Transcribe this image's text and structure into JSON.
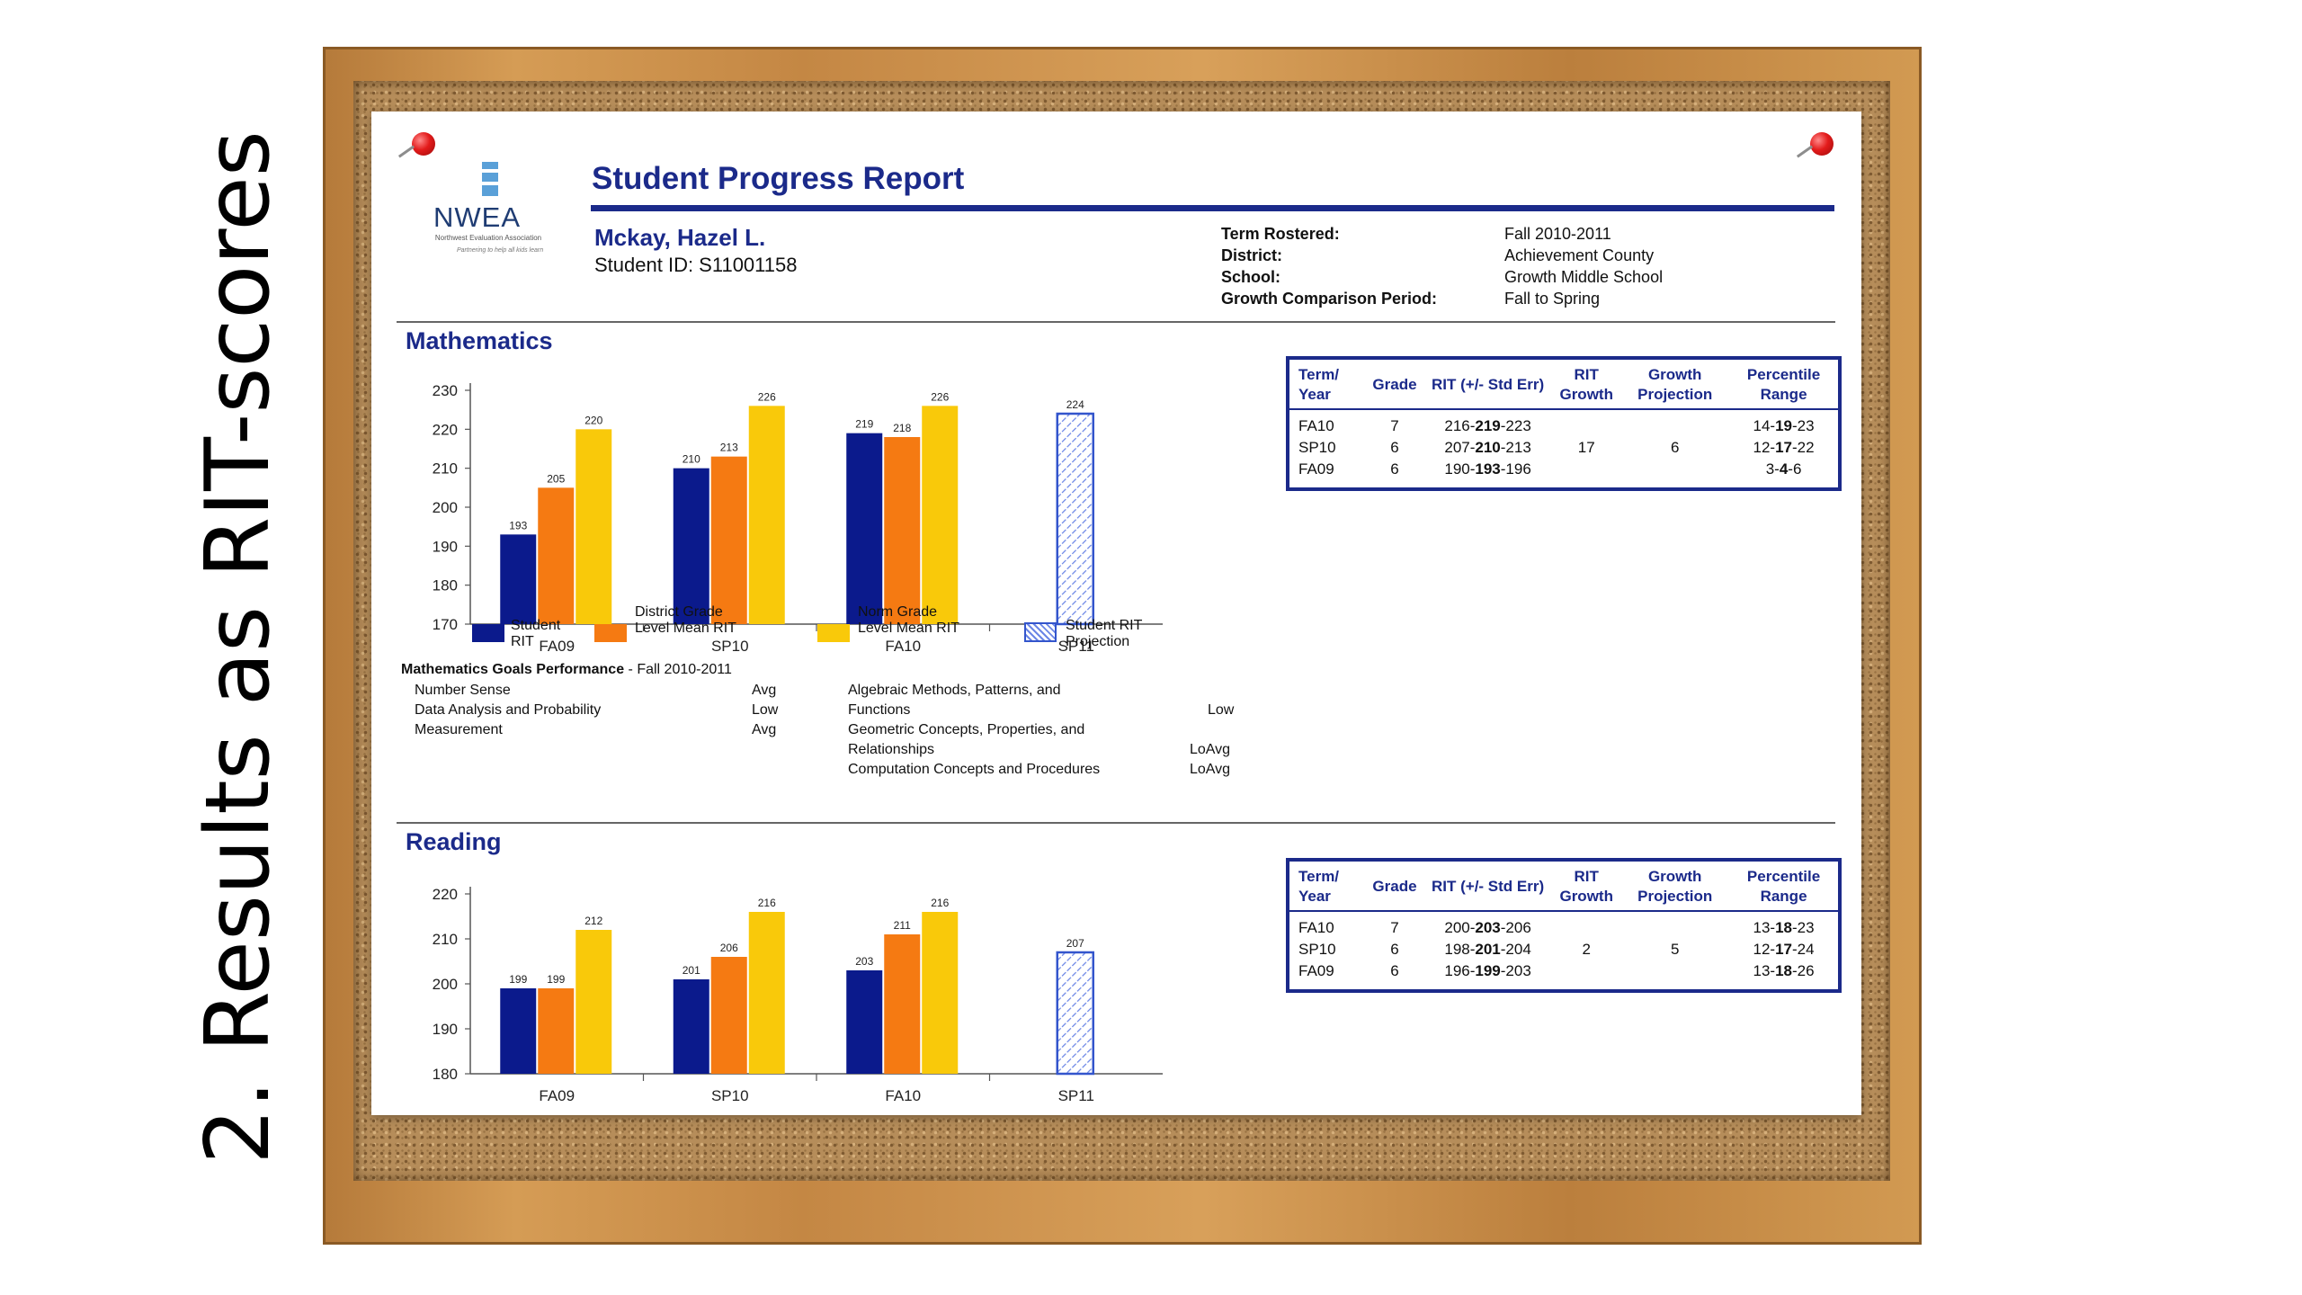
{
  "slide_title": "2. Results as RIT-scores",
  "report": {
    "title": "Student Progress Report",
    "logo": {
      "name": "NWEA",
      "subtitle": "Northwest Evaluation Association",
      "tagline": "Partnering to help all kids learn"
    },
    "student_name": "Mckay, Hazel L.",
    "student_id": "Student ID: S11001158",
    "meta": [
      {
        "label": "Term Rostered:",
        "value": "Fall 2010-2011"
      },
      {
        "label": "District:",
        "value": "Achievement County"
      },
      {
        "label": "School:",
        "value": "Growth Middle School"
      },
      {
        "label": "Growth Comparison Period:",
        "value": "Fall to Spring"
      }
    ]
  },
  "legend": {
    "student": "Student RIT",
    "district": "District Grade Level Mean RIT",
    "norm": "Norm Grade Level Mean RIT",
    "projection": "Student RIT Projection"
  },
  "colors": {
    "student": "#0b1a8c",
    "district": "#f57a12",
    "norm": "#f9c90a",
    "projection": "#3355cc"
  },
  "goals": {
    "heading": "Mathematics Goals Performance",
    "heading_suffix": " - Fall 2010-2011",
    "left": [
      {
        "name": "Number Sense",
        "level": "Avg"
      },
      {
        "name": "Data Analysis and Probability",
        "level": "Low"
      },
      {
        "name": "Measurement",
        "level": "Avg"
      }
    ],
    "right_lines": [
      "Algebraic Methods, Patterns, and",
      "Functions",
      "Geometric Concepts, Properties, and",
      "Relationships",
      "Computation Concepts and Procedures"
    ],
    "right_levels": [
      "",
      "Low",
      "",
      "LoAvg",
      "LoAvg"
    ]
  },
  "table_headers": [
    "Term/ Year",
    "Grade",
    "RIT (+/- Std Err)",
    "RIT Growth",
    "Growth Projection",
    "Percentile Range"
  ],
  "math_table": [
    {
      "term": "FA10",
      "grade": "7",
      "rit_lo": "216-",
      "rit": "219",
      "rit_hi": "-223",
      "growth": "",
      "projection": "",
      "pct_lo": "14-",
      "pct": "19",
      "pct_hi": "-23"
    },
    {
      "term": "SP10",
      "grade": "6",
      "rit_lo": "207-",
      "rit": "210",
      "rit_hi": "-213",
      "growth": "17",
      "projection": "6",
      "pct_lo": "12-",
      "pct": "17",
      "pct_hi": "-22"
    },
    {
      "term": "FA09",
      "grade": "6",
      "rit_lo": "190-",
      "rit": "193",
      "rit_hi": "-196",
      "growth": "",
      "projection": "",
      "pct_lo": "3-",
      "pct": "4",
      "pct_hi": "-6"
    }
  ],
  "reading_table": [
    {
      "term": "FA10",
      "grade": "7",
      "rit_lo": "200-",
      "rit": "203",
      "rit_hi": "-206",
      "growth": "",
      "projection": "",
      "pct_lo": "13-",
      "pct": "18",
      "pct_hi": "-23"
    },
    {
      "term": "SP10",
      "grade": "6",
      "rit_lo": "198-",
      "rit": "201",
      "rit_hi": "-204",
      "growth": "2",
      "projection": "5",
      "pct_lo": "12-",
      "pct": "17",
      "pct_hi": "-24"
    },
    {
      "term": "FA09",
      "grade": "6",
      "rit_lo": "196-",
      "rit": "199",
      "rit_hi": "-203",
      "growth": "",
      "projection": "",
      "pct_lo": "13-",
      "pct": "18",
      "pct_hi": "-26"
    }
  ],
  "chart_data": [
    {
      "type": "bar",
      "title": "Mathematics",
      "categories": [
        "FA09",
        "SP10",
        "FA10",
        "SP11"
      ],
      "ylim": [
        170,
        230
      ],
      "yticks": [
        170,
        180,
        190,
        200,
        210,
        220,
        230
      ],
      "series": [
        {
          "name": "Student RIT",
          "key": "student",
          "values": [
            193,
            210,
            219,
            null
          ]
        },
        {
          "name": "District Grade Level Mean RIT",
          "key": "district",
          "values": [
            205,
            213,
            218,
            null
          ]
        },
        {
          "name": "Norm Grade Level Mean RIT",
          "key": "norm",
          "values": [
            220,
            226,
            226,
            null
          ]
        },
        {
          "name": "Student RIT Projection",
          "key": "projection",
          "values": [
            null,
            null,
            null,
            224
          ]
        }
      ]
    },
    {
      "type": "bar",
      "title": "Reading",
      "categories": [
        "FA09",
        "SP10",
        "FA10",
        "SP11"
      ],
      "ylim": [
        180,
        220
      ],
      "yticks": [
        180,
        190,
        200,
        210,
        220
      ],
      "series": [
        {
          "name": "Student RIT",
          "key": "student",
          "values": [
            199,
            201,
            203,
            null
          ]
        },
        {
          "name": "District Grade Level Mean RIT",
          "key": "district",
          "values": [
            199,
            206,
            211,
            null
          ]
        },
        {
          "name": "Norm Grade Level Mean RIT",
          "key": "norm",
          "values": [
            212,
            216,
            216,
            null
          ]
        },
        {
          "name": "Student RIT Projection",
          "key": "projection",
          "values": [
            null,
            null,
            null,
            207
          ]
        }
      ]
    }
  ]
}
